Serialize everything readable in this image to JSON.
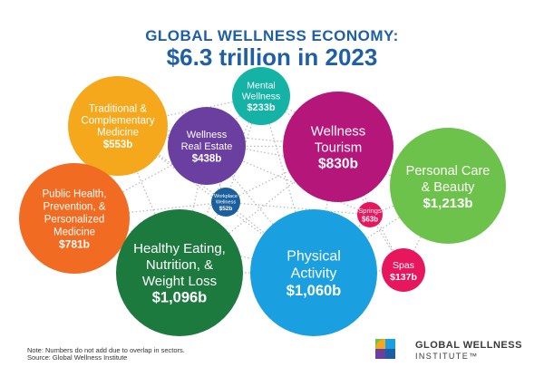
{
  "header": {
    "title_line1": "GLOBAL WELLNESS ECONOMY:",
    "title_line2": "$6.3 trillion in 2023"
  },
  "footer": {
    "note": "Note: Numbers do not add due to overlap in sectors.",
    "source": "Source: Global Wellness Institute"
  },
  "logo": {
    "line1": "GLOBAL WELLNESS",
    "line2": "INSTITUTE™"
  },
  "chart_data": {
    "type": "bubble",
    "title": "GLOBAL WELLNESS ECONOMY: $6.3 trillion in 2023",
    "units": "billions USD",
    "sectors": [
      {
        "lines": [
          "Traditional &",
          "Complementary",
          "Medicine"
        ],
        "value_label": "$553b",
        "value": 553,
        "color": "#f5a81c"
      },
      {
        "lines": [
          "Mental",
          "Wellness"
        ],
        "value_label": "$233b",
        "value": 233,
        "color": "#14b3a6"
      },
      {
        "lines": [
          "Wellness",
          "Real Estate"
        ],
        "value_label": "$438b",
        "value": 438,
        "color": "#6a3fa0"
      },
      {
        "lines": [
          "Wellness",
          "Tourism"
        ],
        "value_label": "$830b",
        "value": 830,
        "color": "#b5167a"
      },
      {
        "lines": [
          "Personal Care",
          "& Beauty"
        ],
        "value_label": "$1,213b",
        "value": 1213,
        "color": "#6cc24a"
      },
      {
        "lines": [
          "Public Health,",
          "Prevention, &",
          "Personalized",
          "Medicine"
        ],
        "value_label": "$781b",
        "value": 781,
        "color": "#f26b22"
      },
      {
        "lines": [
          "Workplace",
          "Wellness"
        ],
        "value_label": "$52b",
        "value": 52,
        "color": "#1b5f9e"
      },
      {
        "lines": [
          "Springs"
        ],
        "value_label": "$63b",
        "value": 63,
        "color": "#e8175d"
      },
      {
        "lines": [
          "Healthy Eating,",
          "Nutrition, &",
          "Weight Loss"
        ],
        "value_label": "$1,096b",
        "value": 1096,
        "color": "#1d7a3e"
      },
      {
        "lines": [
          "Physical",
          "Activity"
        ],
        "value_label": "$1,060b",
        "value": 1060,
        "color": "#1aa0e0"
      },
      {
        "lines": [
          "Spas"
        ],
        "value_label": "$137b",
        "value": 137,
        "color": "#e8175d"
      }
    ]
  }
}
